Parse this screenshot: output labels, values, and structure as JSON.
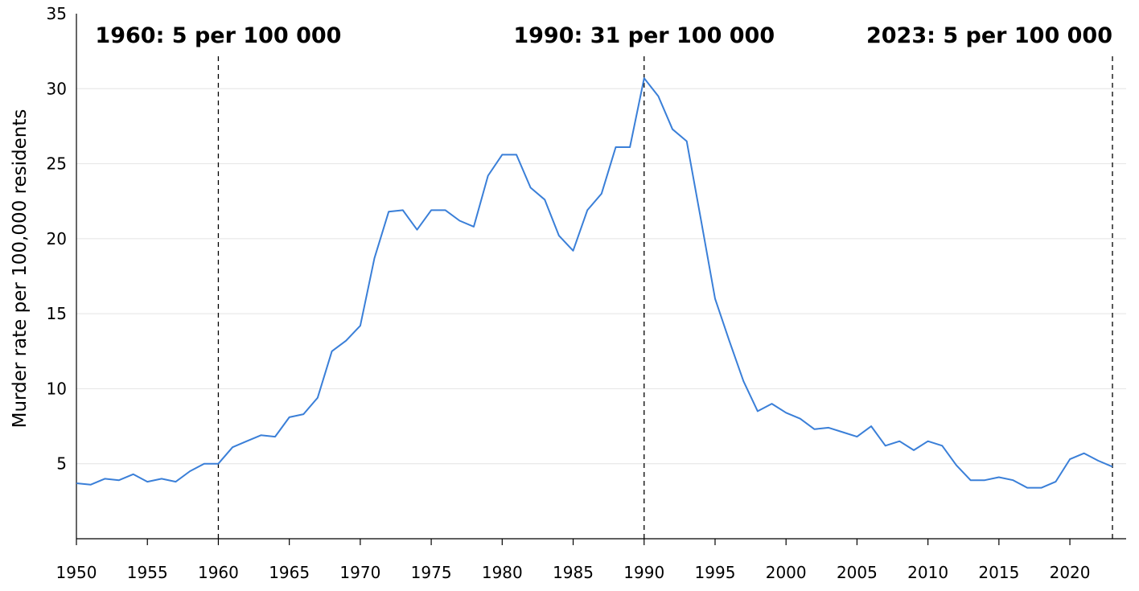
{
  "chart_data": {
    "type": "line",
    "title": "",
    "xlabel": "",
    "ylabel": "Murder rate per 100,000 residents",
    "xlim": [
      1950,
      2023
    ],
    "ylim": [
      0,
      35
    ],
    "grid": "horizontal",
    "legend": "none",
    "line_color": "#3a7fd8",
    "x_ticks": [
      1950,
      1955,
      1960,
      1965,
      1970,
      1975,
      1980,
      1985,
      1990,
      1995,
      2000,
      2005,
      2010,
      2015,
      2020
    ],
    "y_ticks": [
      5,
      10,
      15,
      20,
      25,
      30,
      35
    ],
    "x": [
      1950,
      1951,
      1952,
      1953,
      1954,
      1955,
      1956,
      1957,
      1958,
      1959,
      1960,
      1961,
      1962,
      1963,
      1964,
      1965,
      1966,
      1967,
      1968,
      1969,
      1970,
      1971,
      1972,
      1973,
      1974,
      1975,
      1976,
      1977,
      1978,
      1979,
      1980,
      1981,
      1982,
      1983,
      1984,
      1985,
      1986,
      1987,
      1988,
      1989,
      1990,
      1991,
      1992,
      1993,
      1994,
      1995,
      1996,
      1997,
      1998,
      1999,
      2000,
      2001,
      2002,
      2003,
      2004,
      2005,
      2006,
      2007,
      2008,
      2009,
      2010,
      2011,
      2012,
      2013,
      2014,
      2015,
      2016,
      2017,
      2018,
      2019,
      2020,
      2021,
      2022,
      2023
    ],
    "y": [
      3.7,
      3.6,
      4.0,
      3.9,
      4.3,
      3.8,
      4.0,
      3.8,
      4.5,
      5.0,
      5.0,
      6.1,
      6.5,
      6.9,
      6.8,
      8.1,
      8.3,
      9.4,
      12.5,
      13.2,
      14.2,
      18.7,
      21.8,
      21.9,
      20.6,
      21.9,
      21.9,
      21.2,
      20.8,
      24.2,
      25.6,
      25.6,
      23.4,
      22.6,
      20.2,
      19.2,
      21.9,
      23.0,
      26.1,
      26.1,
      30.7,
      29.5,
      27.3,
      26.5,
      21.3,
      16.0,
      13.2,
      10.5,
      8.5,
      9.0,
      8.4,
      8.0,
      7.3,
      7.4,
      7.1,
      6.8,
      7.5,
      6.2,
      6.5,
      5.9,
      6.5,
      6.2,
      4.9,
      3.9,
      3.9,
      4.1,
      3.9,
      3.4,
      3.4,
      3.8,
      5.3,
      5.7,
      5.2,
      4.8
    ],
    "annotations": [
      {
        "x": 1960,
        "label": "1960: 5 per 100 000"
      },
      {
        "x": 1990,
        "label": "1990: 31 per 100 000"
      },
      {
        "x": 2023,
        "label": "2023: 5 per 100 000"
      }
    ]
  }
}
